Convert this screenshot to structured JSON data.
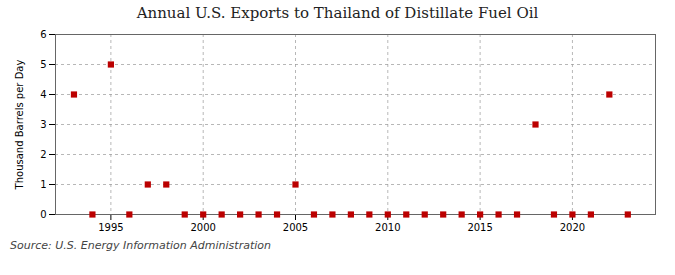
{
  "chart_data": {
    "type": "scatter",
    "title": "Annual U.S. Exports to Thailand of Distillate Fuel Oil",
    "ylabel": "Thousand Barrels per Day",
    "annotations": [
      "Source: U.S. Energy Information Administration"
    ],
    "x": [
      1993,
      1994,
      1995,
      1996,
      1997,
      1998,
      1999,
      2000,
      2001,
      2002,
      2003,
      2004,
      2005,
      2006,
      2007,
      2008,
      2009,
      2010,
      2011,
      2012,
      2013,
      2014,
      2015,
      2016,
      2017,
      2018,
      2019,
      2020,
      2021,
      2022,
      2023
    ],
    "values": [
      4,
      0,
      5,
      0,
      1,
      1,
      0,
      0,
      0,
      0,
      0,
      0,
      1,
      0,
      0,
      0,
      0,
      0,
      0,
      0,
      0,
      0,
      0,
      0,
      0,
      3,
      0,
      0,
      0,
      4,
      0
    ],
    "color": "#bb0000",
    "marker": "square",
    "xlim": [
      1992.0,
      2024.5
    ],
    "ylim": [
      0,
      6
    ],
    "yticks": [
      0,
      1,
      2,
      3,
      4,
      5,
      6
    ],
    "xticks": [
      1995,
      2000,
      2005,
      2010,
      2015,
      2020
    ],
    "grid": true
  }
}
